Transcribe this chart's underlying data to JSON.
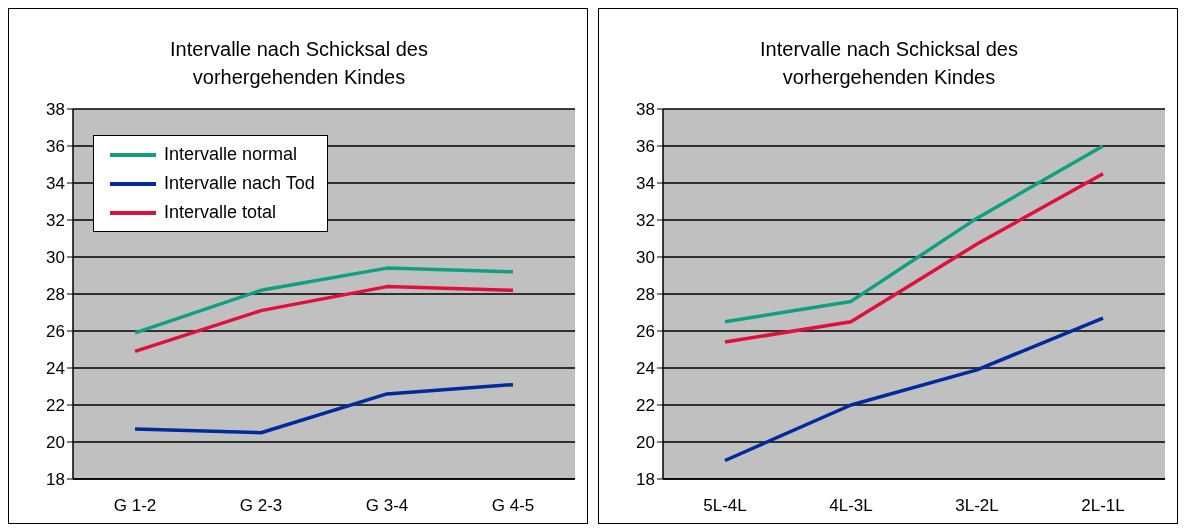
{
  "chart_data": [
    {
      "type": "line",
      "title": "Intervalle nach Schicksal des vorhergehenden Kindes",
      "categories": [
        "G 1-2",
        "G 2-3",
        "G 3-4",
        "G 4-5"
      ],
      "series": [
        {
          "name": "Intervalle normal",
          "color": "#10a080",
          "values": [
            25.9,
            28.2,
            29.4,
            29.2
          ]
        },
        {
          "name": "Intervalle nach Tod",
          "color": "#002b9c",
          "values": [
            20.7,
            20.5,
            22.6,
            23.1
          ]
        },
        {
          "name": "Intervalle total",
          "color": "#e0103c",
          "values": [
            24.9,
            27.1,
            28.4,
            28.2
          ]
        }
      ],
      "ylim": [
        18,
        38
      ],
      "yticks": [
        18,
        20,
        22,
        24,
        26,
        28,
        30,
        32,
        34,
        36,
        38
      ],
      "grid": "y",
      "legend": "top left",
      "marker": "none"
    },
    {
      "type": "line",
      "title": "Intervalle nach Schicksal des vorhergehenden Kindes",
      "categories": [
        "5L-4L",
        "4L-3L",
        "3L-2L",
        "2L-1L"
      ],
      "series": [
        {
          "color": "#10a080",
          "values": [
            26.5,
            27.6,
            32.1,
            36.0
          ]
        },
        {
          "color": "#002b9c",
          "values": [
            19.0,
            22.0,
            23.9,
            26.7
          ]
        },
        {
          "color": "#e0103c",
          "values": [
            25.4,
            26.5,
            30.7,
            34.5
          ]
        }
      ],
      "ylim": [
        18,
        38
      ],
      "yticks": [
        18,
        20,
        22,
        24,
        26,
        28,
        30,
        32,
        34,
        36,
        38
      ],
      "grid": "y",
      "legend": false,
      "marker": "none"
    }
  ]
}
